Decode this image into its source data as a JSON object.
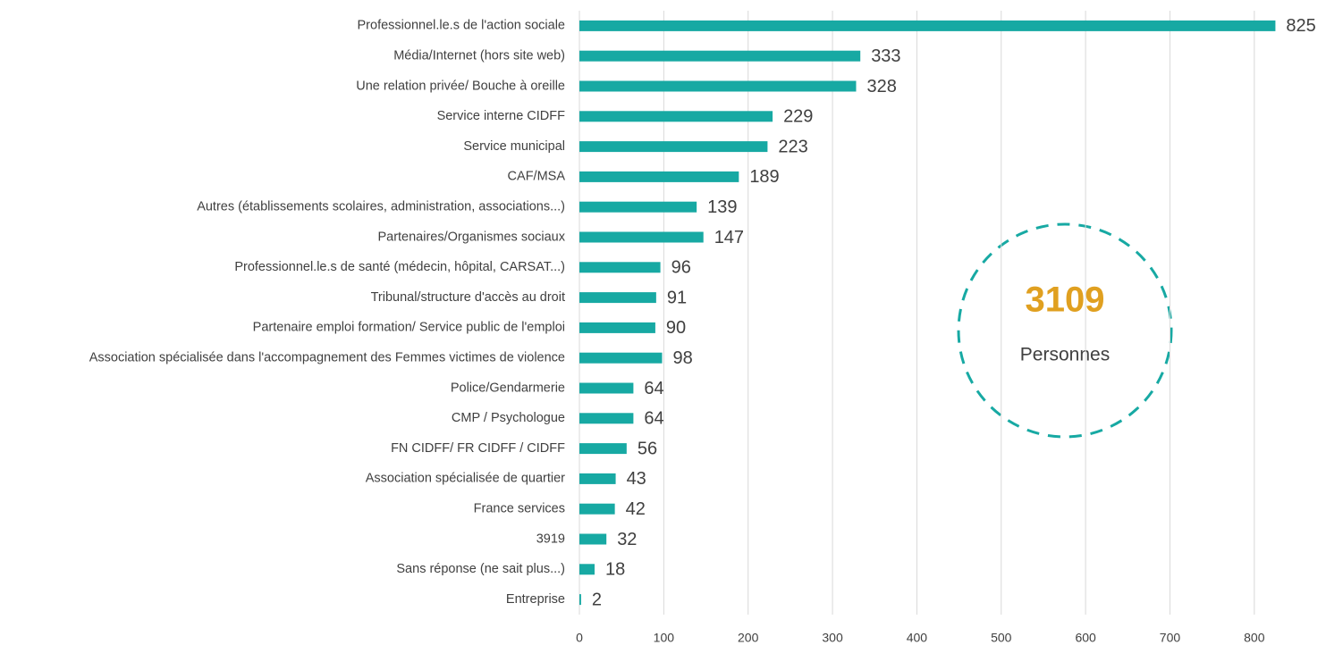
{
  "chart_data": {
    "type": "hbar",
    "categories": [
      "Professionnel.le.s de l'action sociale",
      "Média/Internet (hors site web)",
      "Une relation privée/ Bouche à oreille",
      "Service interne CIDFF",
      "Service municipal",
      "CAF/MSA",
      "Autres (établissements scolaires, administration, associations...)",
      "Partenaires/Organismes sociaux",
      "Professionnel.le.s de santé (médecin, hôpital, CARSAT...)",
      "Tribunal/structure d'accès au droit",
      "Partenaire emploi formation/ Service public de l'emploi",
      "Association spécialisée dans l'accompagnement des Femmes victimes de violence",
      "Police/Gendarmerie",
      "CMP / Psychologue",
      "FN CIDFF/ FR CIDFF / CIDFF",
      "Association spécialisée de quartier",
      "France services",
      "3919",
      "Sans réponse (ne sait plus...)",
      "Entreprise"
    ],
    "values": [
      825,
      333,
      328,
      229,
      223,
      189,
      139,
      147,
      96,
      91,
      90,
      98,
      64,
      64,
      56,
      43,
      42,
      32,
      18,
      2
    ],
    "color": "#17a9a3",
    "xlim": [
      0,
      850
    ],
    "xticks": [
      0,
      100,
      200,
      300,
      400,
      500,
      600,
      700,
      800
    ],
    "grid": true,
    "annotation": {
      "total": "3109",
      "total_color": "#e0a020",
      "label": "Personnes",
      "circle_color": "#17a9a3"
    }
  }
}
